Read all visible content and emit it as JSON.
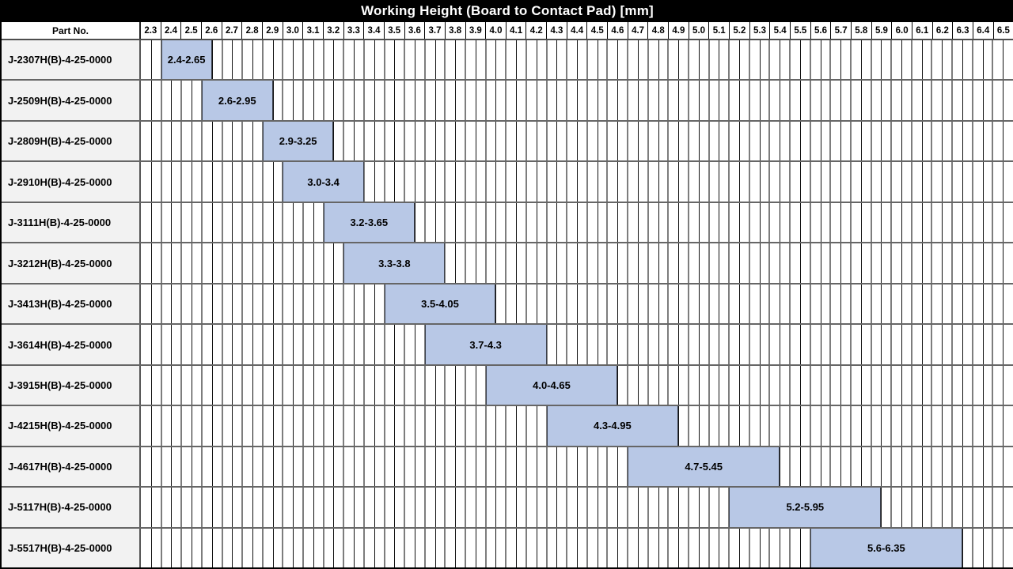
{
  "title": "Working Height (Board to Contact Pad) [mm]",
  "header": {
    "part_no_label": "Part No."
  },
  "colors": {
    "bar_fill": "#b8c8e6",
    "bar_border": "#3a3f4a",
    "row_label_bg": "#f2f2f2",
    "title_bg": "#000000",
    "title_text": "#ffffff",
    "minor_grid": "#111111",
    "major_grid": "#7d7d7d"
  },
  "chart_data": {
    "type": "bar",
    "variant": "horizontal-range",
    "title": "Working Height (Board to Contact Pad) [mm]",
    "xlabel": "",
    "ylabel": "Part No.",
    "axis": {
      "min": 2.3,
      "max": 6.6,
      "major_step": 0.1,
      "minor_step": 0.05
    },
    "tick_labels": [
      "2.3",
      "2.4",
      "2.5",
      "2.6",
      "2.7",
      "2.8",
      "2.9",
      "3.0",
      "3.1",
      "3.2",
      "3.3",
      "3.4",
      "3.5",
      "3.6",
      "3.7",
      "3.8",
      "3.9",
      "4.0",
      "4.1",
      "4.2",
      "4.3",
      "4.4",
      "4.5",
      "4.6",
      "4.7",
      "4.8",
      "4.9",
      "5.0",
      "5.1",
      "5.2",
      "5.3",
      "5.4",
      "5.5",
      "5.6",
      "5.7",
      "5.8",
      "5.9",
      "6.0",
      "6.1",
      "6.2",
      "6.3",
      "6.4",
      "6.5"
    ],
    "rows": [
      {
        "part_no": "J-2307H(B)-4-25-0000",
        "start": 2.4,
        "end": 2.65,
        "label": "2.4-2.65"
      },
      {
        "part_no": "J-2509H(B)-4-25-0000",
        "start": 2.6,
        "end": 2.95,
        "label": "2.6-2.95"
      },
      {
        "part_no": "J-2809H(B)-4-25-0000",
        "start": 2.9,
        "end": 3.25,
        "label": "2.9-3.25"
      },
      {
        "part_no": "J-2910H(B)-4-25-0000",
        "start": 3.0,
        "end": 3.4,
        "label": "3.0-3.4"
      },
      {
        "part_no": "J-3111H(B)-4-25-0000",
        "start": 3.2,
        "end": 3.65,
        "label": "3.2-3.65"
      },
      {
        "part_no": "J-3212H(B)-4-25-0000",
        "start": 3.3,
        "end": 3.8,
        "label": "3.3-3.8"
      },
      {
        "part_no": "J-3413H(B)-4-25-0000",
        "start": 3.5,
        "end": 4.05,
        "label": "3.5-4.05"
      },
      {
        "part_no": "J-3614H(B)-4-25-0000",
        "start": 3.7,
        "end": 4.3,
        "label": "3.7-4.3"
      },
      {
        "part_no": "J-3915H(B)-4-25-0000",
        "start": 4.0,
        "end": 4.65,
        "label": "4.0-4.65"
      },
      {
        "part_no": "J-4215H(B)-4-25-0000",
        "start": 4.3,
        "end": 4.95,
        "label": "4.3-4.95"
      },
      {
        "part_no": "J-4617H(B)-4-25-0000",
        "start": 4.7,
        "end": 5.45,
        "label": "4.7-5.45"
      },
      {
        "part_no": "J-5117H(B)-4-25-0000",
        "start": 5.2,
        "end": 5.95,
        "label": "5.2-5.95"
      },
      {
        "part_no": "J-5517H(B)-4-25-0000",
        "start": 5.6,
        "end": 6.35,
        "label": "5.6-6.35"
      }
    ]
  }
}
